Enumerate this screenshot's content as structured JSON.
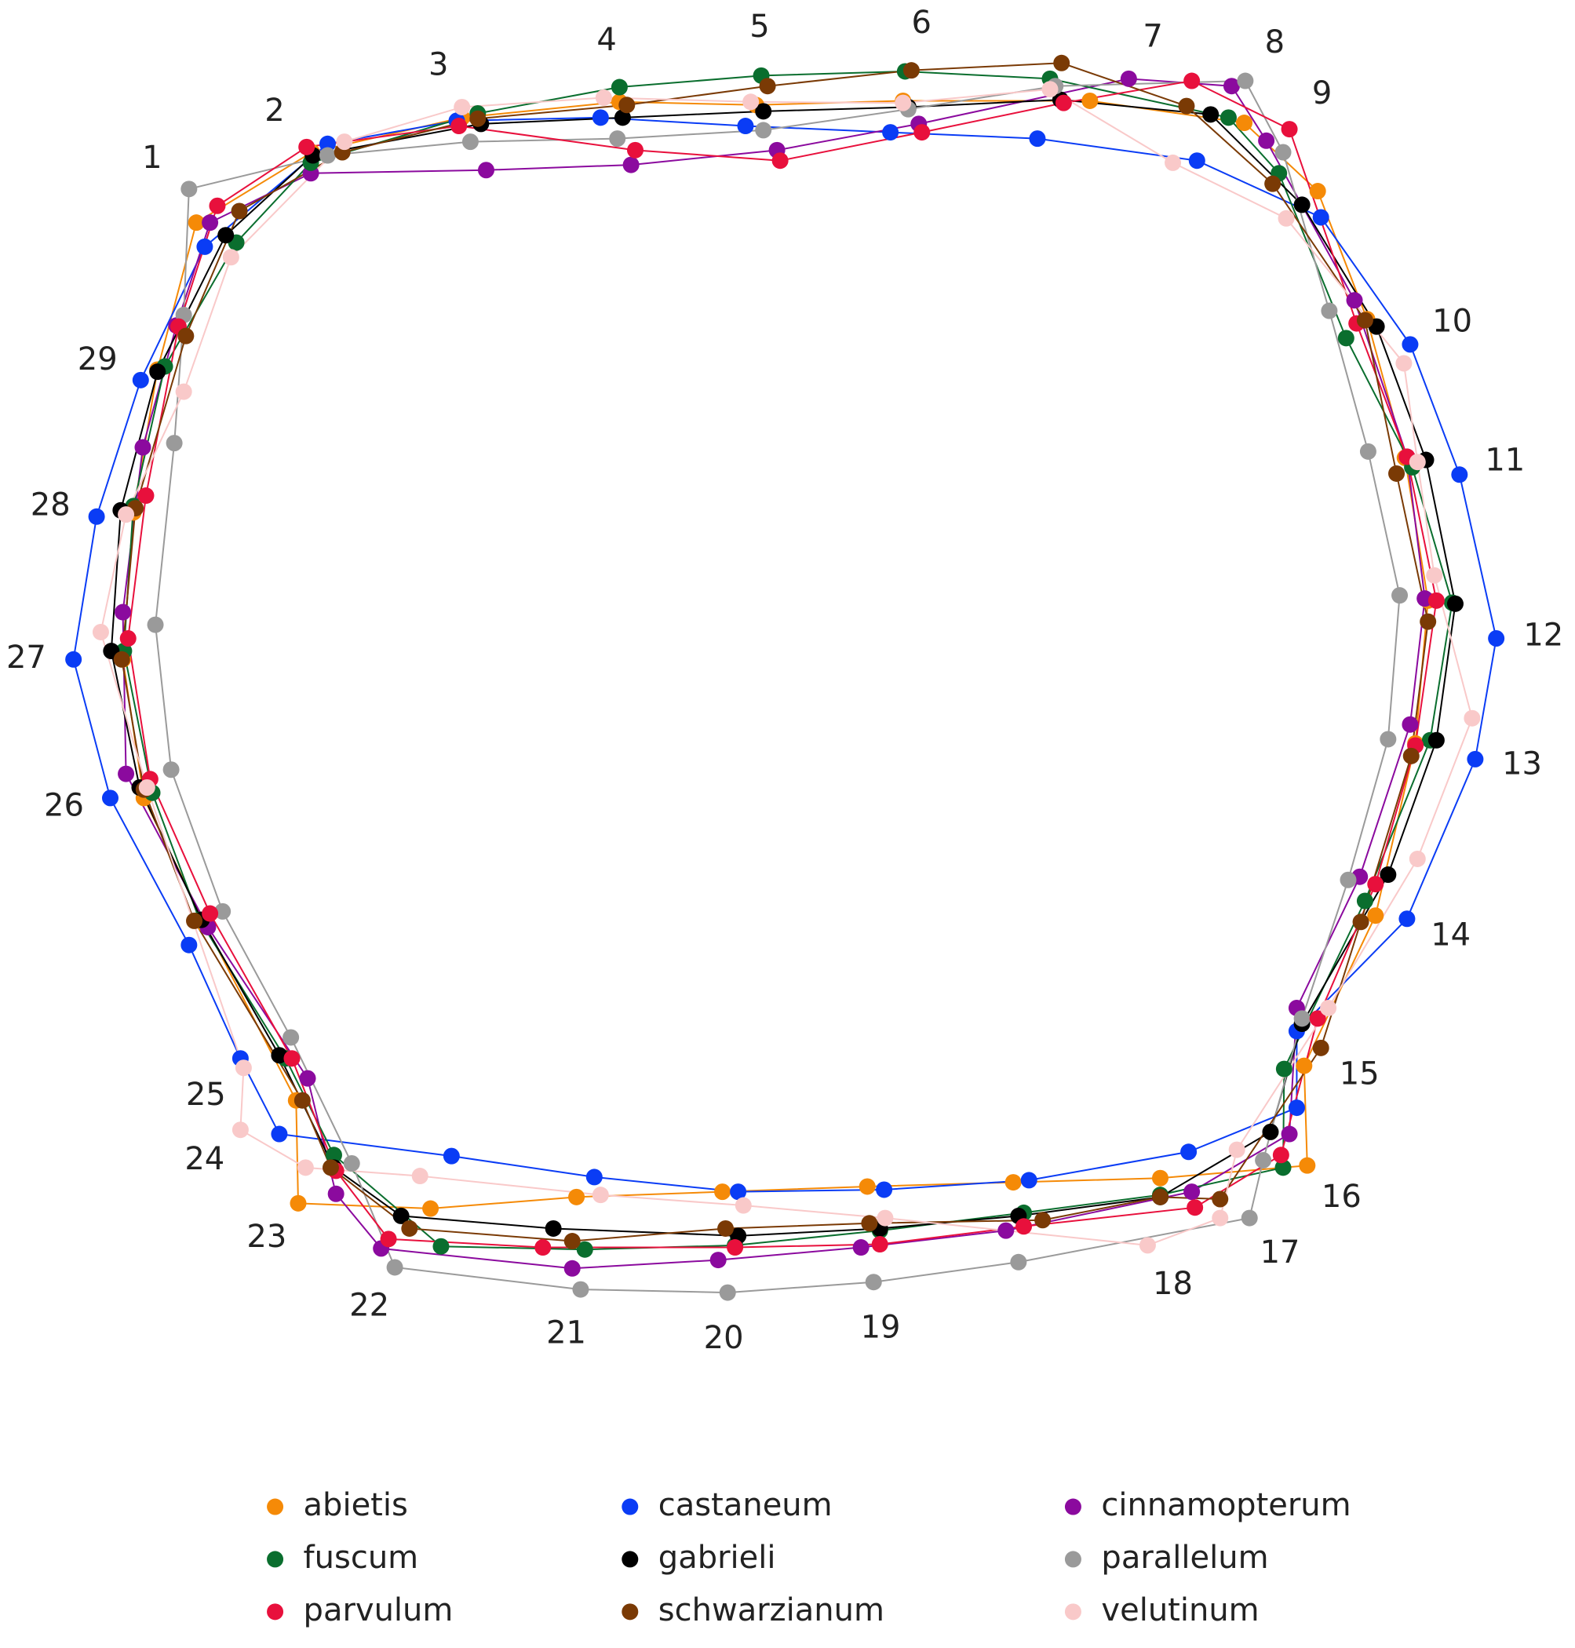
{
  "chart_data": {
    "type": "landmark",
    "landmark_labels": [
      "1",
      "2",
      "3",
      "4",
      "5",
      "6",
      "7",
      "8",
      "9",
      "10",
      "11",
      "12",
      "13",
      "14",
      "15",
      "16",
      "17",
      "18",
      "19",
      "20",
      "21",
      "22",
      "23",
      "24",
      "25",
      "26",
      "27",
      "28",
      "29"
    ],
    "series": [
      {
        "name": "abietis",
        "color": "#f58a07",
        "x": [
          187,
          297,
          440,
          590,
          720,
          860,
          1038,
          1185,
          1255,
          1302,
          1338,
          1360,
          1348,
          1310,
          1242,
          1245,
          1105,
          965,
          826,
          688,
          549,
          410,
          284,
          282,
          195,
          137,
          117,
          127,
          150
        ],
        "y": [
          212,
          145,
          112,
          97,
          100,
          96,
          96,
          117,
          182,
          304,
          436,
          572,
          708,
          872,
          1015,
          1110,
          1122,
          1126,
          1130,
          1135,
          1140,
          1151,
          1146,
          1048,
          880,
          760,
          628,
          488,
          352
        ]
      },
      {
        "name": "castaneum",
        "color": "#0a3cf5",
        "x": [
          195,
          312,
          435,
          572,
          710,
          848,
          988,
          1140,
          1258,
          1343,
          1390,
          1425,
          1405,
          1340,
          1235,
          1235,
          1132,
          980,
          842,
          703,
          566,
          430,
          266,
          229,
          180,
          105,
          70,
          92,
          134
        ],
        "y": [
          235,
          137,
          115,
          112,
          120,
          126,
          132,
          153,
          207,
          328,
          452,
          608,
          723,
          875,
          982,
          1055,
          1097,
          1124,
          1133,
          1135,
          1121,
          1101,
          1080,
          1008,
          900,
          760,
          628,
          492,
          362
        ]
      },
      {
        "name": "cinnamopterum",
        "color": "#8b0a9e",
        "x": [
          200,
          296,
          463,
          601,
          740,
          875,
          1075,
          1173,
          1206,
          1290,
          1340,
          1357,
          1343,
          1295,
          1235,
          1228,
          1135,
          958,
          820,
          684,
          545,
          363,
          320,
          293,
          198,
          120,
          117,
          136,
          168
        ],
        "y": [
          212,
          165,
          162,
          157,
          143,
          118,
          75,
          82,
          134,
          286,
          435,
          570,
          690,
          835,
          960,
          1080,
          1135,
          1172,
          1188,
          1200,
          1208,
          1189,
          1137,
          1027,
          883,
          737,
          583,
          426,
          310
        ]
      },
      {
        "name": "fuscum",
        "color": "#0a6e2e",
        "x": [
          225,
          296,
          455,
          590,
          725,
          862,
          1000,
          1170,
          1218,
          1282,
          1345,
          1383,
          1362,
          1300,
          1223,
          1222,
          1105,
          975,
          838,
          700,
          557,
          420,
          318,
          272,
          190,
          145,
          118,
          127,
          157
        ],
        "y": [
          231,
          155,
          108,
          83,
          72,
          68,
          75,
          112,
          165,
          322,
          445,
          574,
          705,
          858,
          1018,
          1112,
          1138,
          1155,
          1172,
          1186,
          1190,
          1187,
          1100,
          1008,
          876,
          755,
          620,
          482,
          349
        ]
      },
      {
        "name": "gabrieli",
        "color": "#000000",
        "x": [
          215,
          298,
          458,
          593,
          727,
          865,
          1010,
          1153,
          1240,
          1311,
          1358,
          1386,
          1368,
          1322,
          1240,
          1210,
          1105,
          970,
          838,
          703,
          527,
          382,
          318,
          266,
          192,
          133,
          106,
          115,
          150
        ],
        "y": [
          224,
          148,
          118,
          112,
          106,
          102,
          95,
          109,
          195,
          311,
          438,
          575,
          705,
          833,
          975,
          1078,
          1140,
          1158,
          1170,
          1177,
          1170,
          1158,
          1112,
          1005,
          876,
          750,
          620,
          486,
          354
        ]
      },
      {
        "name": "parallelum",
        "color": "#9a9a9a",
        "x": [
          180,
          312,
          448,
          588,
          727,
          865,
          1005,
          1186,
          1222,
          1266,
          1303,
          1333,
          1322,
          1284,
          1240,
          1203,
          1190,
          970,
          832,
          693,
          553,
          376,
          335,
          277,
          212,
          163,
          148,
          166,
          175
        ],
        "y": [
          180,
          148,
          135,
          132,
          124,
          104,
          82,
          77,
          145,
          296,
          430,
          567,
          704,
          838,
          970,
          1105,
          1160,
          1202,
          1221,
          1231,
          1228,
          1207,
          1108,
          988,
          868,
          733,
          595,
          422,
          300
        ]
      },
      {
        "name": "parvulum",
        "color": "#e8103c",
        "x": [
          207,
          292,
          437,
          605,
          743,
          878,
          1013,
          1135,
          1228,
          1292,
          1340,
          1368,
          1348,
          1310,
          1255,
          1220,
          1138,
          975,
          838,
          700,
          517,
          370,
          320,
          278,
          200,
          143,
          122,
          139,
          170
        ],
        "y": [
          196,
          140,
          120,
          143,
          153,
          126,
          98,
          77,
          123,
          308,
          435,
          572,
          710,
          842,
          970,
          1100,
          1150,
          1168,
          1185,
          1188,
          1188,
          1180,
          1115,
          1008,
          870,
          742,
          608,
          472,
          311
        ]
      },
      {
        "name": "schwarzianum",
        "color": "#7a3a05",
        "x": [
          228,
          326,
          455,
          597,
          731,
          868,
          1011,
          1130,
          1212,
          1300,
          1330,
          1360,
          1344,
          1296,
          1258,
          1162,
          1105,
          993,
          828,
          691,
          545,
          390,
          315,
          288,
          185,
          137,
          116,
          129,
          177
        ],
        "y": [
          201,
          145,
          113,
          100,
          82,
          67,
          60,
          101,
          175,
          305,
          451,
          592,
          720,
          878,
          998,
          1142,
          1140,
          1162,
          1165,
          1170,
          1182,
          1170,
          1112,
          1048,
          877,
          752,
          628,
          484,
          320
        ]
      },
      {
        "name": "velutinum",
        "color": "#f9c9c9",
        "x": [
          220,
          328,
          440,
          575,
          715,
          860,
          1000,
          1117,
          1225,
          1337,
          1350,
          1366,
          1402,
          1350,
          1265,
          1178,
          1162,
          1093,
          843,
          708,
          572,
          400,
          291,
          229,
          232,
          140,
          96,
          120,
          175
        ],
        "y": [
          245,
          135,
          102,
          93,
          97,
          98,
          85,
          155,
          208,
          346,
          440,
          548,
          684,
          818,
          960,
          1095,
          1160,
          1186,
          1160,
          1148,
          1138,
          1120,
          1112,
          1076,
          1017,
          750,
          602,
          490,
          373
        ]
      }
    ]
  }
}
